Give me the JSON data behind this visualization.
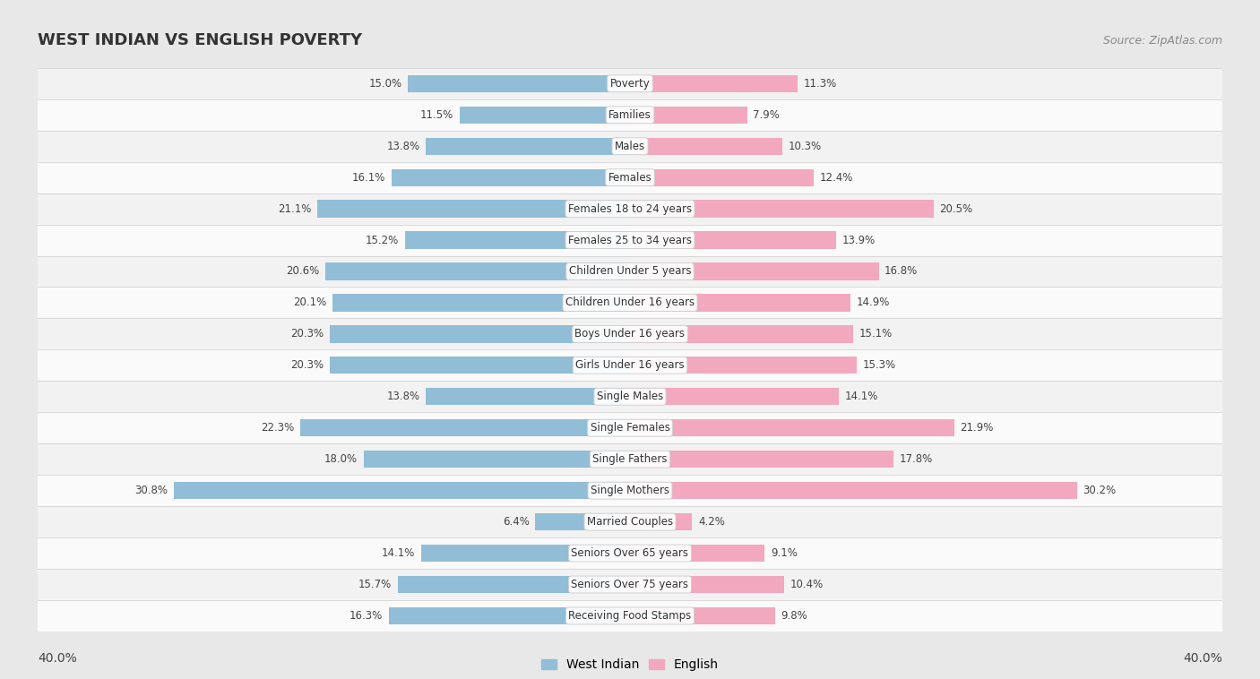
{
  "title": "WEST INDIAN VS ENGLISH POVERTY",
  "source": "Source: ZipAtlas.com",
  "categories": [
    "Poverty",
    "Families",
    "Males",
    "Females",
    "Females 18 to 24 years",
    "Females 25 to 34 years",
    "Children Under 5 years",
    "Children Under 16 years",
    "Boys Under 16 years",
    "Girls Under 16 years",
    "Single Males",
    "Single Females",
    "Single Fathers",
    "Single Mothers",
    "Married Couples",
    "Seniors Over 65 years",
    "Seniors Over 75 years",
    "Receiving Food Stamps"
  ],
  "west_indian": [
    15.0,
    11.5,
    13.8,
    16.1,
    21.1,
    15.2,
    20.6,
    20.1,
    20.3,
    20.3,
    13.8,
    22.3,
    18.0,
    30.8,
    6.4,
    14.1,
    15.7,
    16.3
  ],
  "english": [
    11.3,
    7.9,
    10.3,
    12.4,
    20.5,
    13.9,
    16.8,
    14.9,
    15.1,
    15.3,
    14.1,
    21.9,
    17.8,
    30.2,
    4.2,
    9.1,
    10.4,
    9.8
  ],
  "west_indian_color": "#92bdd6",
  "english_color": "#f2a8be",
  "axis_max": 40.0,
  "background_color": "#e8e8e8",
  "row_bg_odd": "#f2f2f2",
  "row_bg_even": "#fafafa",
  "title_color": "#333333",
  "source_color": "#888888",
  "value_color": "#444444",
  "label_color": "#333333",
  "bar_height": 0.55,
  "title_fontsize": 13,
  "label_fontsize": 8.5,
  "value_fontsize": 8.5,
  "axis_label_fontsize": 10,
  "legend_fontsize": 10
}
